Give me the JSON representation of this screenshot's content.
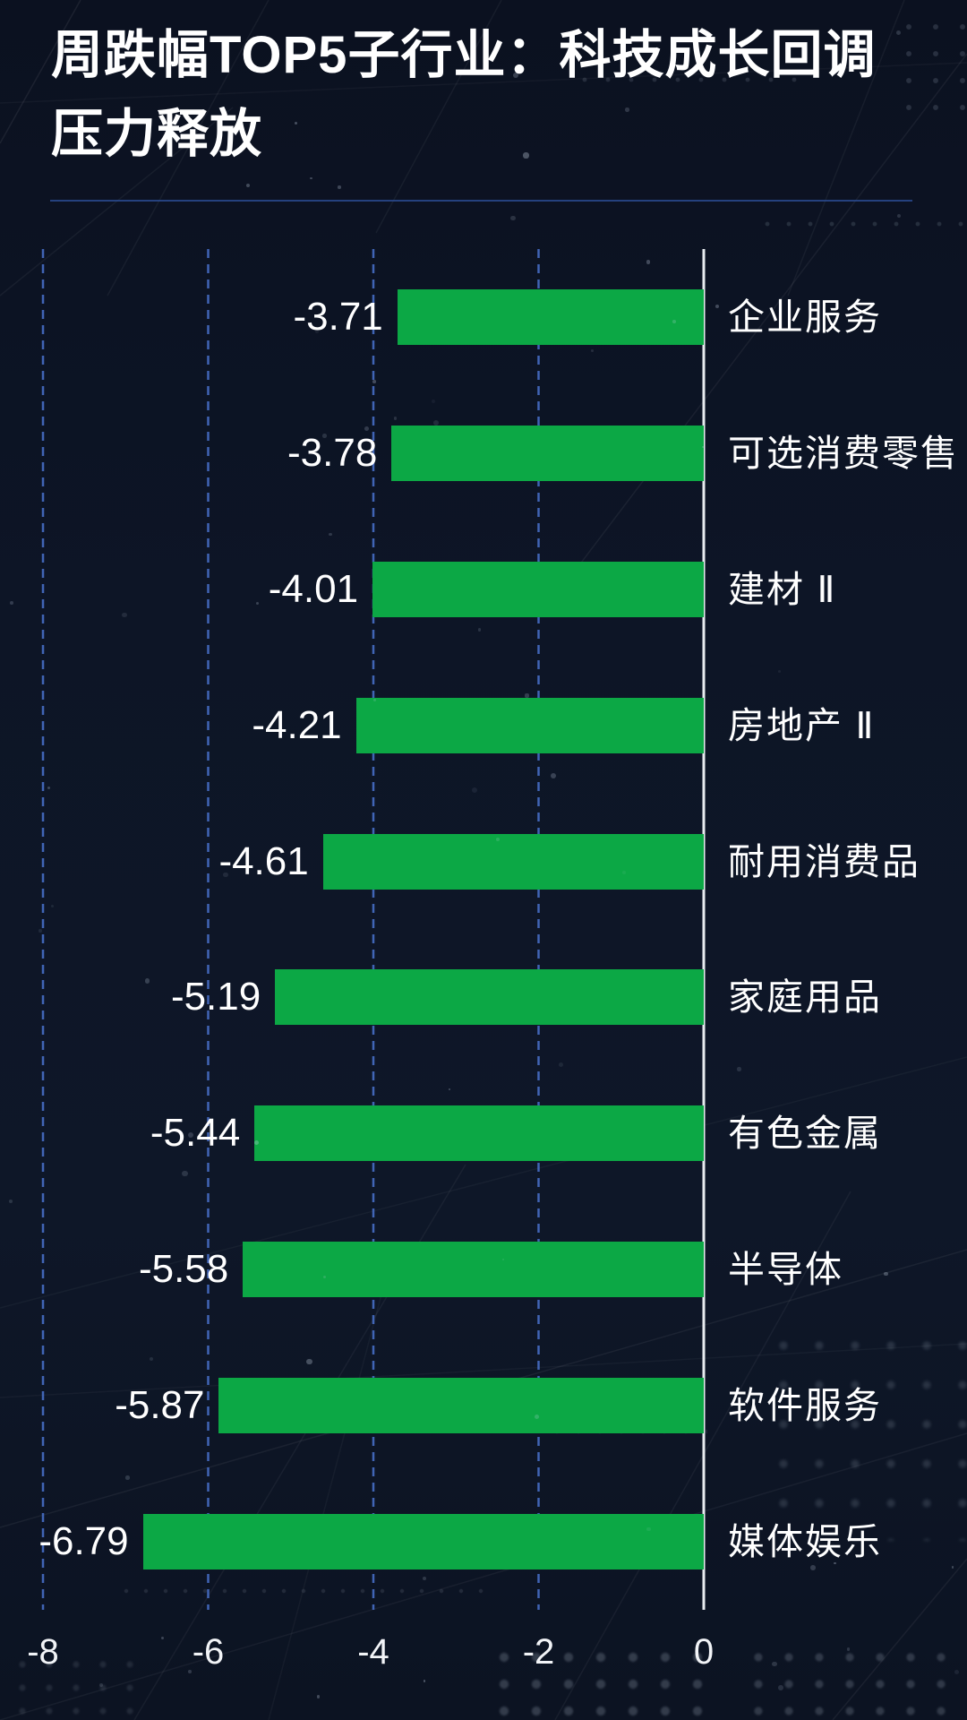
{
  "title": {
    "line1": "周跌幅TOP5子行业：科技成长回调",
    "line2": "压力释放"
  },
  "chart_data": {
    "type": "bar",
    "orientation": "horizontal",
    "categories": [
      "企业服务",
      "可选消费零售",
      "建材 Ⅱ",
      "房地产 Ⅱ",
      "耐用消费品",
      "家庭用品",
      "有色金属",
      "半导体",
      "软件服务",
      "媒体娱乐"
    ],
    "values": [
      -3.71,
      -3.78,
      -4.01,
      -4.21,
      -4.61,
      -5.19,
      -5.44,
      -5.58,
      -5.87,
      -6.79
    ],
    "value_labels": [
      "-3.71",
      "-3.78",
      "-4.01",
      "-4.21",
      "-4.61",
      "-5.19",
      "-5.44",
      "-5.58",
      "-5.87",
      "-6.79"
    ],
    "x_ticks": [
      -8,
      -6,
      -4,
      -2,
      0
    ],
    "x_tick_labels": [
      "-8",
      "-6",
      "-4",
      "-2",
      "0"
    ],
    "xlim": [
      -8,
      0
    ],
    "grid": "vertical-dashed",
    "zero_line": true,
    "legend": "none"
  },
  "colors": {
    "background": "#0d1526",
    "bar_green": "#0ca845",
    "gridline_blue": "#4a73cf",
    "zero_line": "#e8ecf0",
    "divider_blue": "#2a4a8e",
    "text": "#ffffff"
  }
}
